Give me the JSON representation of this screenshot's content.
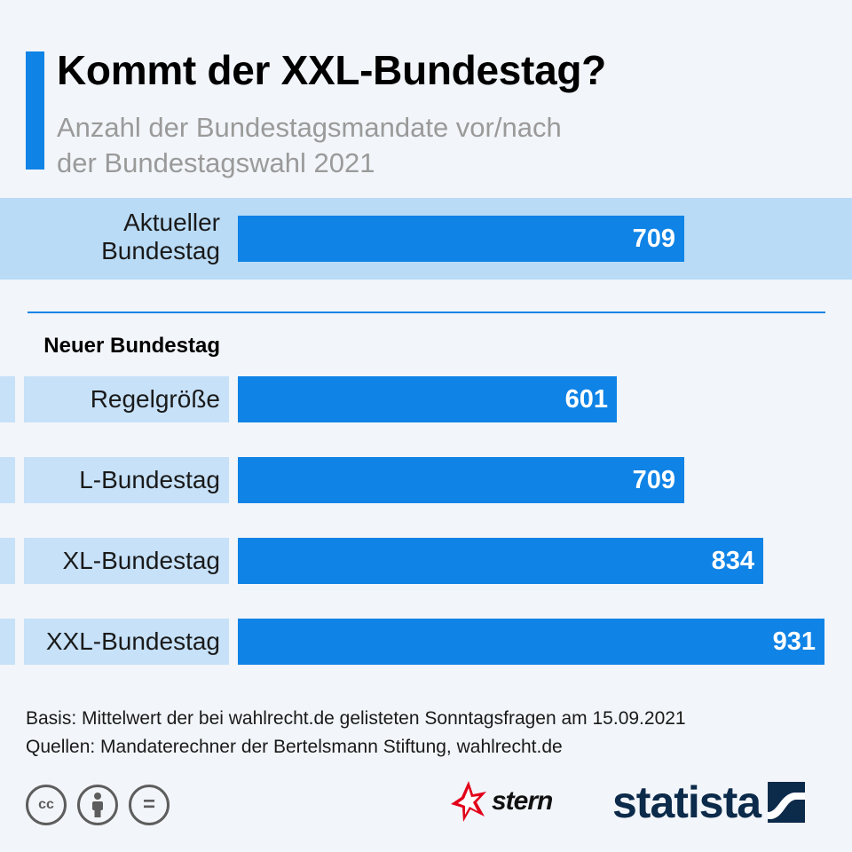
{
  "header": {
    "title": "Kommt der XXL-Bundestag?",
    "subtitle_line1": "Anzahl der Bundestagsmandate vor/nach",
    "subtitle_line2": "der Bundestagswahl 2021"
  },
  "chart_data": {
    "type": "bar",
    "orientation": "horizontal",
    "title": "Kommt der XXL-Bundestag?",
    "subtitle": "Anzahl der Bundestagsmandate vor/nach der Bundestagswahl 2021",
    "xlim": [
      0,
      931
    ],
    "current": {
      "label_line1": "Aktueller",
      "label_line2": "Bundestag",
      "value": 709
    },
    "group_label": "Neuer Bundestag",
    "categories": [
      "Regelgröße",
      "L-Bundestag",
      "XL-Bundestag",
      "XXL-Bundestag"
    ],
    "values": [
      601,
      709,
      834,
      931
    ],
    "colors": {
      "bar": "#0f83e6",
      "band": "#b9dbf6",
      "value_text": "#ffffff"
    }
  },
  "footer": {
    "basis": "Basis: Mittelwert der bei wahlrecht.de gelisteten Sonntagsfragen am 15.09.2021",
    "sources": "Quellen: Mandaterechner der Bertelsmann Stiftung, wahlrecht.de"
  },
  "branding": {
    "cc_icons": [
      "cc-icon",
      "by-icon",
      "nd-icon"
    ],
    "cc_text": "cc",
    "nd_text": "=",
    "stern": "stern",
    "statista": "statista"
  }
}
